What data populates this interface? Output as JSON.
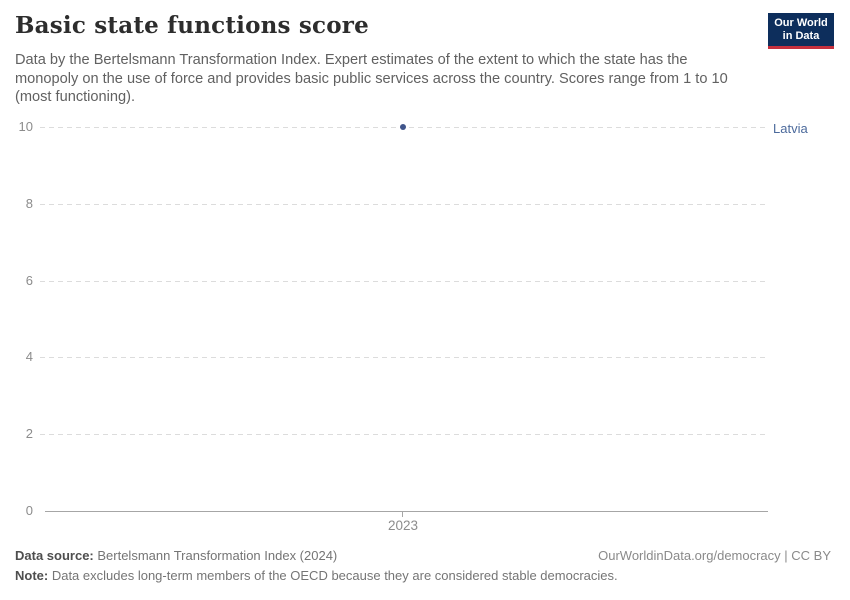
{
  "header": {
    "title": "Basic state functions score",
    "subtitle": "Data by the Bertelsmann Transformation Index. Expert estimates of the extent to which the state has the monopoly on the use of force and provides basic public services across the country. Scores range from 1 to 10 (most functioning).",
    "logo": {
      "line1": "Our World",
      "line2": "in Data"
    }
  },
  "chart_data": {
    "type": "scatter",
    "title": "Basic state functions score",
    "x": [
      2023
    ],
    "series": [
      {
        "name": "Latvia",
        "values": [
          10
        ],
        "color": "#4c6a9c"
      }
    ],
    "xlabel": "",
    "ylabel": "",
    "ylim": [
      0,
      10
    ],
    "y_ticks": [
      "10",
      "8",
      "6",
      "4",
      "2",
      "0"
    ],
    "x_ticks": [
      "2023"
    ],
    "grid": "horizontal dashed",
    "legend_position": "right of point, entity label colored as series"
  },
  "chart": {
    "entity_label": "Latvia",
    "x_tick_label": "2023"
  },
  "footer": {
    "source_label": "Data source:",
    "source_text": " Bertelsmann Transformation Index (2024)",
    "note_label": "Note:",
    "note_text": " Data excludes long-term members of the OECD because they are considered stable democracies.",
    "link_text": "OurWorldinData.org/democracy | CC BY"
  },
  "colors": {
    "series": "#4c6a9c",
    "logo_bg": "#0d2e5c",
    "logo_accent": "#c5303e",
    "gridline": "#dcdcdc",
    "axis": "#a6a6a6",
    "title_text": "#2d2d2d",
    "subtitle_text": "#616161"
  }
}
